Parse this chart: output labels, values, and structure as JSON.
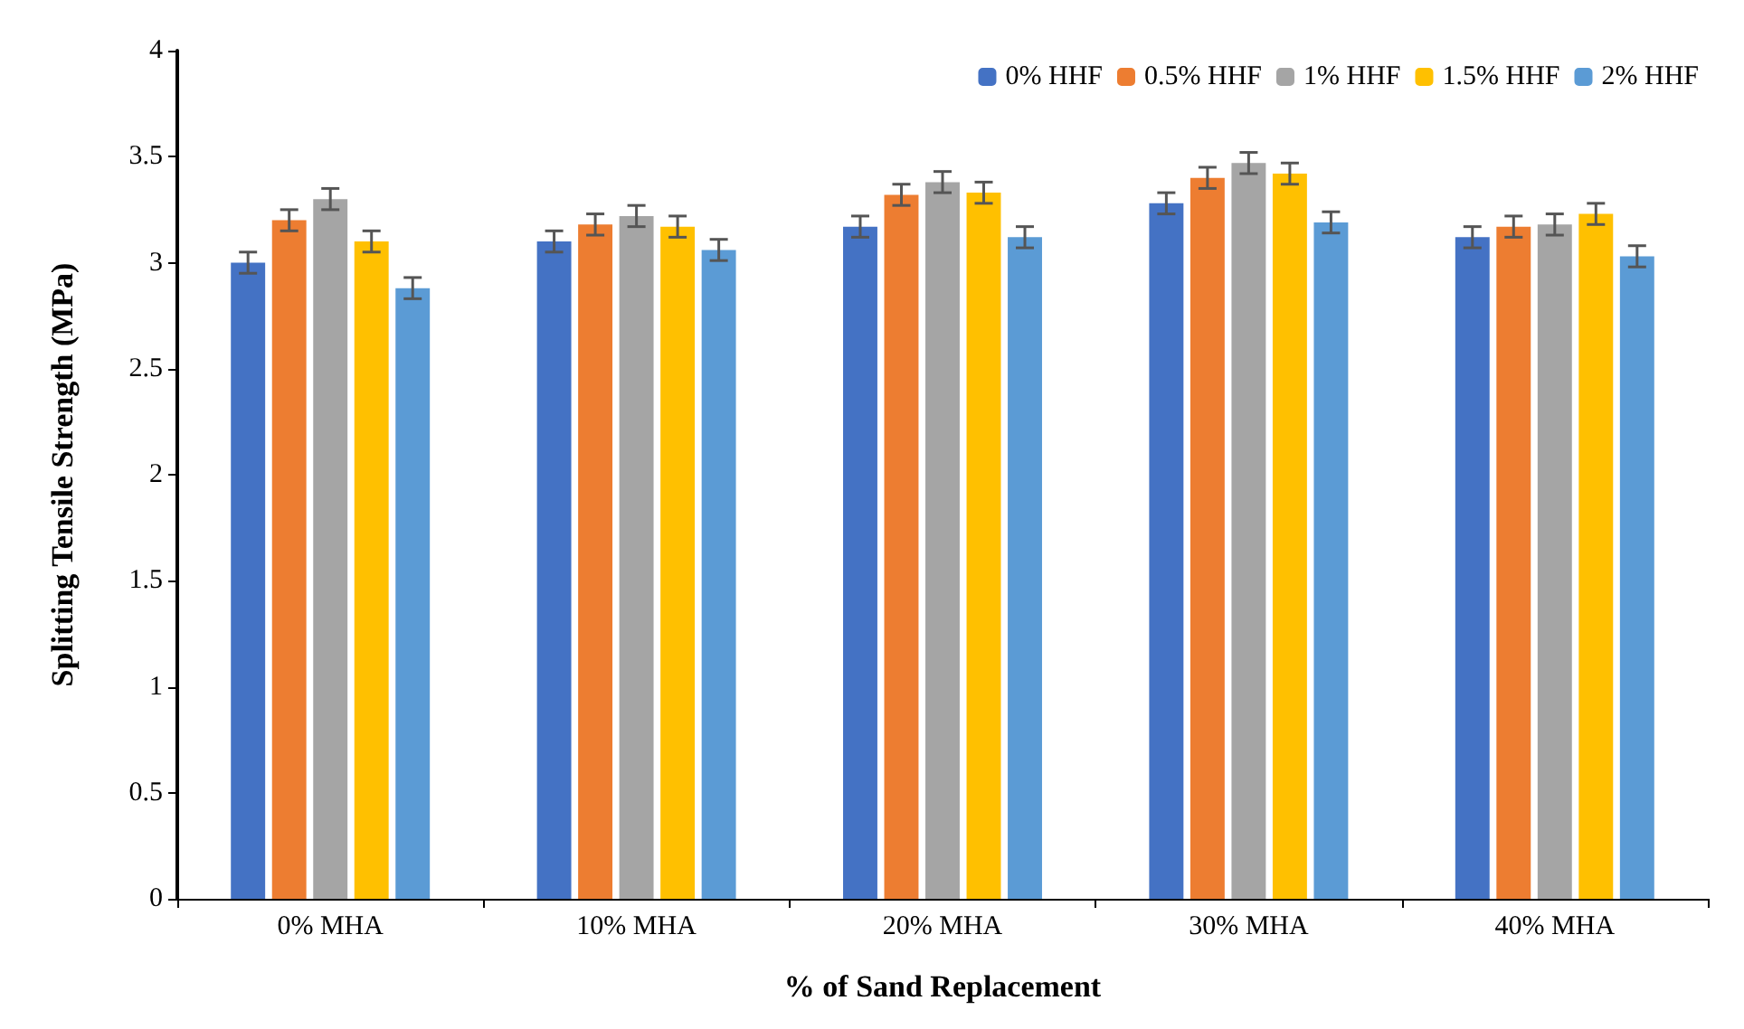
{
  "chart_data": {
    "type": "bar",
    "xlabel": "% of Sand Replacement",
    "ylabel": "Splitting Tensile Strength (MPa)",
    "categories": [
      "0% MHA",
      "10% MHA",
      "20% MHA",
      "30% MHA",
      "40% MHA"
    ],
    "series": [
      {
        "name": "0% HHF",
        "color": "#4472c4",
        "values": [
          3.0,
          3.1,
          3.17,
          3.28,
          3.12
        ],
        "errors": [
          0.05,
          0.05,
          0.05,
          0.05,
          0.05
        ]
      },
      {
        "name": "0.5% HHF",
        "color": "#ed7d31",
        "values": [
          3.2,
          3.18,
          3.32,
          3.4,
          3.17
        ],
        "errors": [
          0.05,
          0.05,
          0.05,
          0.05,
          0.05
        ]
      },
      {
        "name": "1% HHF",
        "color": "#a5a5a5",
        "values": [
          3.3,
          3.22,
          3.38,
          3.47,
          3.18
        ],
        "errors": [
          0.05,
          0.05,
          0.05,
          0.05,
          0.05
        ]
      },
      {
        "name": "1.5% HHF",
        "color": "#ffc000",
        "values": [
          3.1,
          3.17,
          3.33,
          3.42,
          3.23
        ],
        "errors": [
          0.05,
          0.05,
          0.05,
          0.05,
          0.05
        ]
      },
      {
        "name": "2% HHF",
        "color": "#5b9bd5",
        "values": [
          2.88,
          3.06,
          3.12,
          3.19,
          3.03
        ],
        "errors": [
          0.05,
          0.05,
          0.05,
          0.05,
          0.05
        ]
      }
    ],
    "ylim": [
      0,
      4
    ],
    "yticks": [
      0,
      0.5,
      1,
      1.5,
      2,
      2.5,
      3,
      3.5,
      4
    ],
    "grid": false,
    "legend": "top right"
  }
}
